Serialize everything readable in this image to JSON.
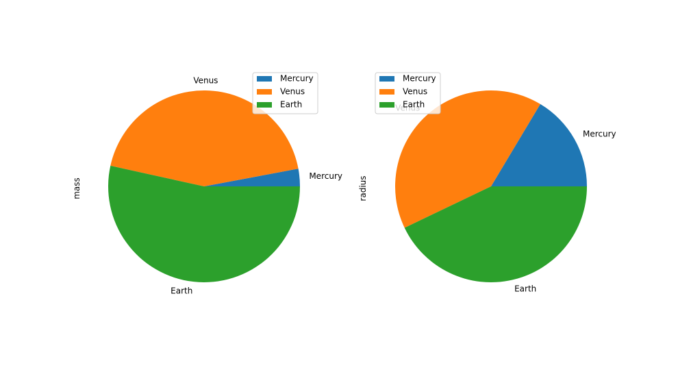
{
  "chart_data": [
    {
      "type": "pie",
      "ylabel": "mass",
      "categories": [
        "Mercury",
        "Venus",
        "Earth"
      ],
      "values": [
        0.33,
        4.87,
        5.97
      ],
      "colors": [
        "#1f77b4",
        "#ff7f0e",
        "#2ca02c"
      ],
      "legend": {
        "placement": "top-right",
        "entries": [
          "Mercury",
          "Venus",
          "Earth"
        ]
      }
    },
    {
      "type": "pie",
      "ylabel": "radius",
      "categories": [
        "Mercury",
        "Venus",
        "Earth"
      ],
      "values": [
        2439.7,
        6051.8,
        6378.1
      ],
      "colors": [
        "#1f77b4",
        "#ff7f0e",
        "#2ca02c"
      ],
      "legend": {
        "placement": "top-left",
        "entries": [
          "Mercury",
          "Venus",
          "Earth"
        ]
      }
    }
  ]
}
